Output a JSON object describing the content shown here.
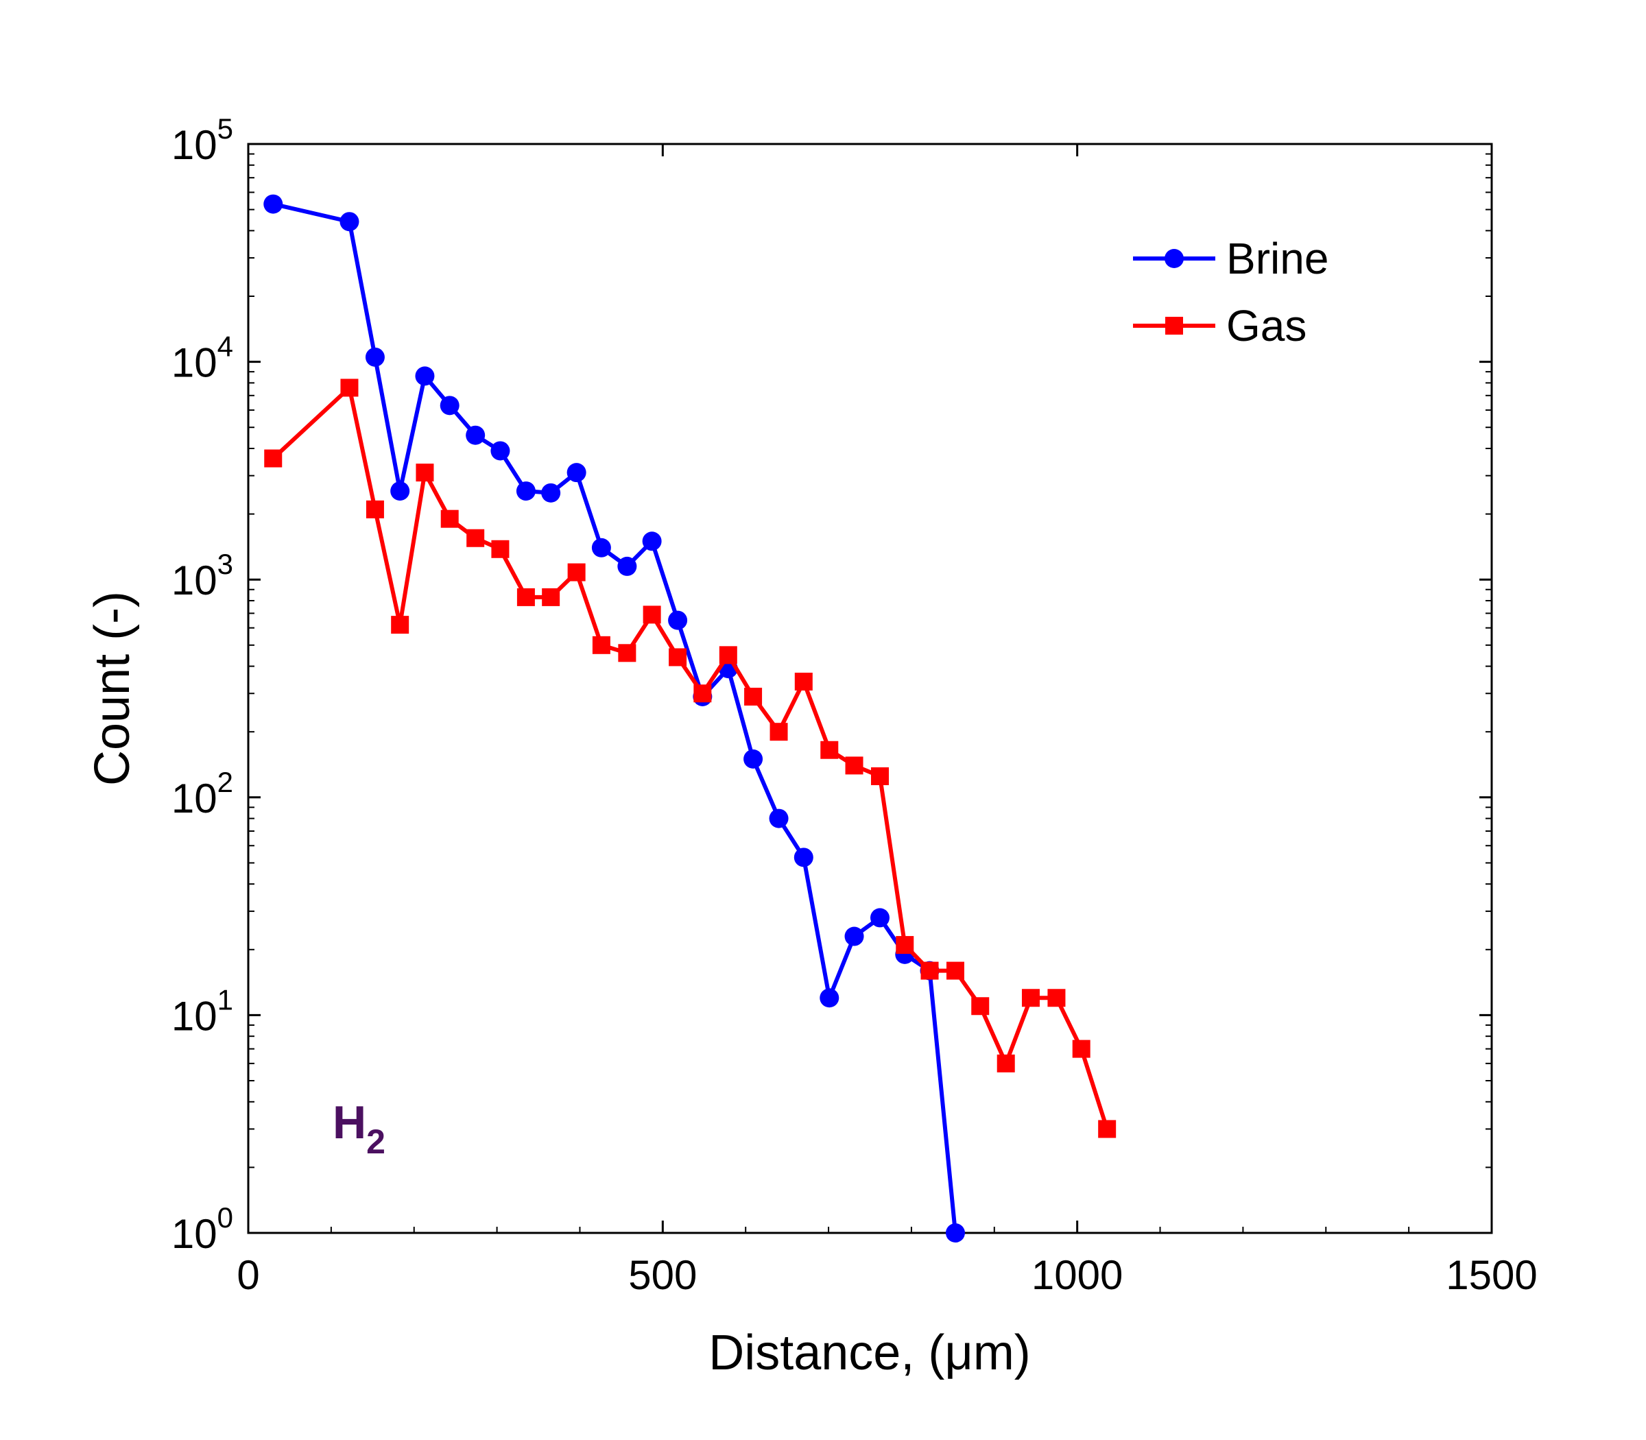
{
  "chart_data": {
    "type": "line",
    "xlabel": "Distance, (μm)",
    "ylabel": "Count (-)",
    "xlim": [
      0,
      1500
    ],
    "ylim": [
      1,
      100000
    ],
    "yscale": "log",
    "grid": false,
    "legend": "top-right",
    "x_ticks": [
      "0",
      "500",
      "1000",
      "1500"
    ],
    "y_ticks": [
      {
        "base": "10",
        "exp": "0"
      },
      {
        "base": "10",
        "exp": "1"
      },
      {
        "base": "10",
        "exp": "2"
      },
      {
        "base": "10",
        "exp": "3"
      },
      {
        "base": "10",
        "exp": "4"
      },
      {
        "base": "10",
        "exp": "5"
      }
    ],
    "annotation": {
      "text": "H",
      "sub": "2",
      "color": "#4b1060"
    },
    "series": [
      {
        "name": "Brine",
        "color": "#0000ff",
        "marker": "circle",
        "x": [
          30,
          122,
          153,
          183,
          213,
          243,
          274,
          304,
          335,
          365,
          396,
          426,
          457,
          487,
          518,
          548,
          579,
          609,
          640,
          670,
          701,
          731,
          762,
          792,
          822,
          853
        ],
        "y": [
          53000,
          44000,
          10500,
          2550,
          8600,
          6300,
          4600,
          3900,
          2550,
          2500,
          3100,
          1400,
          1150,
          1500,
          650,
          290,
          390,
          150,
          80,
          53,
          12,
          23,
          28,
          19,
          16,
          1
        ]
      },
      {
        "name": "Gas",
        "color": "#ff0000",
        "marker": "square",
        "x": [
          30,
          122,
          153,
          183,
          213,
          243,
          274,
          304,
          335,
          365,
          396,
          426,
          457,
          487,
          518,
          548,
          579,
          609,
          640,
          670,
          701,
          731,
          762,
          792,
          822,
          853,
          883,
          914,
          944,
          975,
          1005,
          1036
        ],
        "y": [
          3600,
          7600,
          2100,
          620,
          3100,
          1900,
          1550,
          1380,
          830,
          830,
          1080,
          500,
          460,
          690,
          440,
          300,
          450,
          290,
          200,
          340,
          165,
          140,
          125,
          21,
          16,
          16,
          11,
          6,
          12,
          12,
          7,
          3
        ]
      }
    ]
  }
}
